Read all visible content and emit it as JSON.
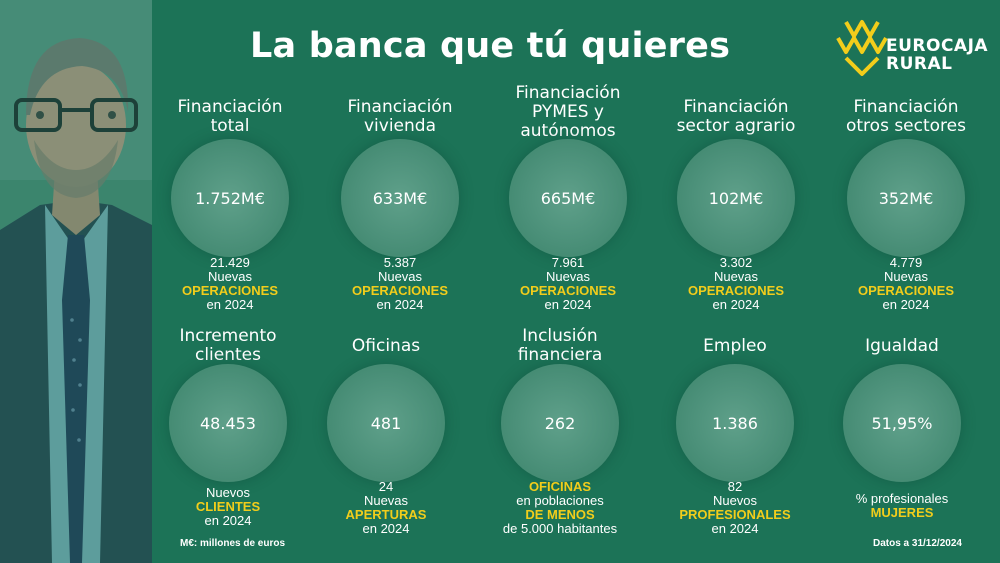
{
  "title": "La banca que tú quieres",
  "logo": {
    "line1": "EUROCAJA",
    "line2": "RURAL"
  },
  "row1": [
    {
      "label1": "Financiación",
      "label2": "total",
      "label3": "",
      "value": "1.752M€",
      "num": "21.429",
      "w1": "Nuevas",
      "w2": "OPERACIONES",
      "w3": "en 2024"
    },
    {
      "label1": "Financiación",
      "label2": "vivienda",
      "label3": "",
      "value": "633M€",
      "num": "5.387",
      "w1": "Nuevas",
      "w2": "OPERACIONES",
      "w3": "en 2024"
    },
    {
      "label1": "Financiación",
      "label2": "PYMES y",
      "label3": "autónomos",
      "value": "665M€",
      "num": "7.961",
      "w1": "Nuevas",
      "w2": "OPERACIONES",
      "w3": "en 2024"
    },
    {
      "label1": "Financiación",
      "label2": "sector agrario",
      "label3": "",
      "value": "102M€",
      "num": "3.302",
      "w1": "Nuevas",
      "w2": "OPERACIONES",
      "w3": "en 2024"
    },
    {
      "label1": "Financiación",
      "label2": "otros sectores",
      "label3": "",
      "value": "352M€",
      "num": "4.779",
      "w1": "Nuevas",
      "w2": "OPERACIONES",
      "w3": "en 2024"
    }
  ],
  "row2": [
    {
      "label1": "Incremento",
      "label2": "clientes",
      "value": "48.453",
      "s1": "Nuevos",
      "s2": "CLIENTES",
      "s3": "en 2024",
      "s4": ""
    },
    {
      "label1": "Oficinas",
      "label2": "",
      "value": "481",
      "s1": "24",
      "s2": "Nuevas",
      "s3": "APERTURAS",
      "s4": "en 2024"
    },
    {
      "label1": "Inclusión",
      "label2": "financiera",
      "value": "262",
      "s1": "OFICINAS",
      "s2": "en poblaciones",
      "s3": "DE MENOS",
      "s4": "de 5.000 habitantes"
    },
    {
      "label1": "Empleo",
      "label2": "",
      "value": "1.386",
      "s1": "82",
      "s2": "Nuevos",
      "s3": "PROFESIONALES",
      "s4": "en 2024"
    },
    {
      "label1": "Igualdad",
      "label2": "",
      "value": "51,95%",
      "s1": "% profesionales",
      "s2": "MUJERES",
      "s3": "",
      "s4": ""
    }
  ],
  "footer": {
    "left": "M€: millones de euros",
    "right": "Datos a 31/12/2024"
  },
  "colors": {
    "background": "#1c7357",
    "highlight": "#f2cd1b",
    "circle": "#4b9079"
  }
}
